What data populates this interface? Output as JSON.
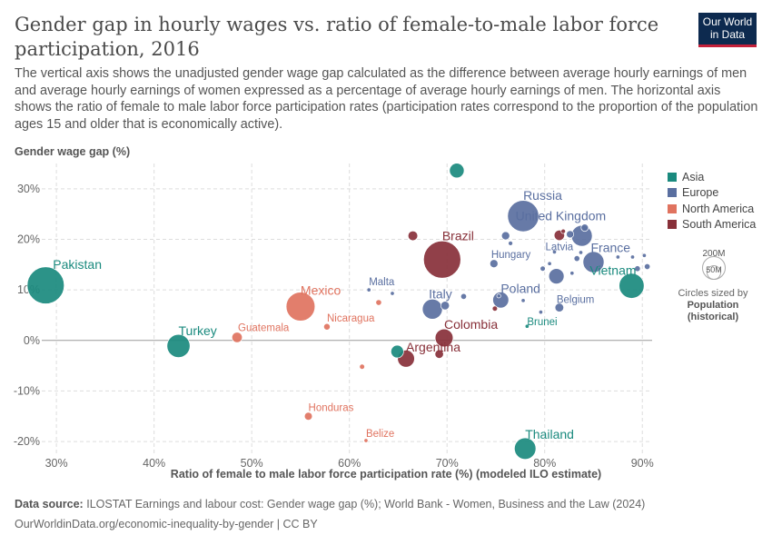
{
  "header": {
    "title": "Gender gap in hourly wages vs. ratio of female-to-male labor force participation, 2016",
    "subtitle": "The vertical axis shows the unadjusted gender wage gap calculated as the difference between average hourly earnings of men and average hourly earnings of women expressed as a percentage of average hourly earnings of men. The horizontal axis shows the ratio of female to male labor force participation rates (participation rates correspond to the proportion of the population ages 15 and older that is economically active).",
    "logo_line1": "Our World",
    "logo_line2": "in Data"
  },
  "footer": {
    "source_label": "Data source:",
    "source_text": "ILOSTAT Earnings and labour cost: Gender wage gap (%); World Bank - Women, Business and the Law (2024)",
    "url": "OurWorldinData.org/economic-inequality-by-gender | CC BY"
  },
  "colors": {
    "Asia": "#1a8a7e",
    "Europe": "#5a6fa0",
    "North America": "#e0735f",
    "South America": "#883039"
  },
  "chart_data": {
    "type": "scatter",
    "title": "Gender gap in hourly wages vs. ratio of female-to-male labor force participation, 2016",
    "xlabel": "Ratio of female to male labor force participation rate (%) (modeled ILO estimate)",
    "ylabel": "Gender wage gap (%)",
    "xlim": [
      28.5,
      91
    ],
    "ylim": [
      -22.5,
      35
    ],
    "x_ticks": [
      30,
      40,
      50,
      60,
      70,
      80,
      90
    ],
    "x_tick_labels": [
      "30%",
      "40%",
      "50%",
      "60%",
      "70%",
      "80%",
      "90%"
    ],
    "y_ticks": [
      -20,
      -10,
      0,
      10,
      20,
      30
    ],
    "y_tick_labels": [
      "-20%",
      "-10%",
      "0%",
      "10%",
      "20%",
      "30%"
    ],
    "grid": true,
    "legend_position": "right",
    "legend": [
      "Asia",
      "Europe",
      "North America",
      "South America"
    ],
    "size_legend": {
      "big": "200M",
      "small": "50M",
      "note": "Circles sized by",
      "var1": "Population",
      "var2": "(historical)"
    },
    "points": [
      {
        "label": "Pakistan",
        "x": 28.9,
        "y": 10.9,
        "pop": 204,
        "region": "Asia"
      },
      {
        "label": "Turkey",
        "x": 42.5,
        "y": -1.1,
        "pop": 79,
        "region": "Asia"
      },
      {
        "label": "Guatemala",
        "x": 48.5,
        "y": 0.6,
        "pop": 16,
        "region": "North America"
      },
      {
        "label": "Mexico",
        "x": 55.0,
        "y": 6.7,
        "pop": 124,
        "region": "North America"
      },
      {
        "label": "Nicaragua",
        "x": 57.7,
        "y": 2.7,
        "pop": 6.3,
        "region": "North America"
      },
      {
        "label": "Malta",
        "x": 62.0,
        "y": 10.0,
        "pop": 0.45,
        "region": "Europe"
      },
      {
        "label": "Honduras",
        "x": 55.8,
        "y": -15.0,
        "pop": 9.3,
        "region": "North America"
      },
      {
        "label": "Belize",
        "x": 61.7,
        "y": -19.8,
        "pop": 0.37,
        "region": "North America"
      },
      {
        "label": "Brazil",
        "x": 69.5,
        "y": 16.0,
        "pop": 206,
        "region": "South America"
      },
      {
        "label": "Italy",
        "x": 68.5,
        "y": 6.2,
        "pop": 60,
        "region": "Europe"
      },
      {
        "label": "Colombia",
        "x": 69.7,
        "y": 0.5,
        "pop": 48,
        "region": "South America"
      },
      {
        "label": "Argentina",
        "x": 65.8,
        "y": -3.6,
        "pop": 43,
        "region": "South America"
      },
      {
        "label": "Russia",
        "x": 77.8,
        "y": 24.6,
        "pop": 145,
        "region": "Europe"
      },
      {
        "label": "United Kingdom",
        "x": 83.8,
        "y": 20.7,
        "pop": 65,
        "region": "Europe"
      },
      {
        "label": "Hungary",
        "x": 74.8,
        "y": 15.2,
        "pop": 9.8,
        "region": "Europe"
      },
      {
        "label": "Latvia",
        "x": 81.0,
        "y": 17.5,
        "pop": 2.0,
        "region": "Europe"
      },
      {
        "label": "France",
        "x": 85.0,
        "y": 15.5,
        "pop": 66,
        "region": "Europe"
      },
      {
        "label": "Vietnam",
        "x": 88.9,
        "y": 10.8,
        "pop": 93,
        "region": "Asia"
      },
      {
        "label": "Poland",
        "x": 75.5,
        "y": 8.0,
        "pop": 38,
        "region": "Europe"
      },
      {
        "label": "Belgium",
        "x": 81.5,
        "y": 6.5,
        "pop": 11.3,
        "region": "Europe"
      },
      {
        "label": "Brunei",
        "x": 78.2,
        "y": 2.8,
        "pop": 0.42,
        "region": "Asia"
      },
      {
        "label": "Thailand",
        "x": 78.0,
        "y": -21.4,
        "pop": 69,
        "region": "Asia"
      },
      {
        "label": "",
        "x": 71.0,
        "y": 33.6,
        "pop": 32,
        "region": "Asia"
      },
      {
        "label": "",
        "x": 64.9,
        "y": -2.2,
        "pop": 24,
        "region": "Asia"
      },
      {
        "label": "",
        "x": 66.5,
        "y": 20.7,
        "pop": 14,
        "region": "South America"
      },
      {
        "label": "",
        "x": 69.2,
        "y": -2.7,
        "pop": 11,
        "region": "South America"
      },
      {
        "label": "",
        "x": 61.3,
        "y": -5.2,
        "pop": 4,
        "region": "North America"
      },
      {
        "label": "",
        "x": 63.0,
        "y": 7.5,
        "pop": 5,
        "region": "North America"
      },
      {
        "label": "",
        "x": 64.4,
        "y": 9.3,
        "pop": 0.6,
        "region": "Europe"
      },
      {
        "label": "",
        "x": 69.8,
        "y": 6.9,
        "pop": 11,
        "region": "Europe"
      },
      {
        "label": "",
        "x": 71.7,
        "y": 8.7,
        "pop": 5,
        "region": "Europe"
      },
      {
        "label": "",
        "x": 74.9,
        "y": 6.3,
        "pop": 4,
        "region": "South America"
      },
      {
        "label": "",
        "x": 75.3,
        "y": 8.8,
        "pop": 1,
        "region": "Europe"
      },
      {
        "label": "",
        "x": 76.0,
        "y": 20.7,
        "pop": 10,
        "region": "Europe"
      },
      {
        "label": "",
        "x": 76.5,
        "y": 19.2,
        "pop": 3,
        "region": "Europe"
      },
      {
        "label": "",
        "x": 77.8,
        "y": 7.9,
        "pop": 1,
        "region": "Europe"
      },
      {
        "label": "",
        "x": 79.6,
        "y": 5.6,
        "pop": 0.4,
        "region": "Europe"
      },
      {
        "label": "",
        "x": 79.8,
        "y": 14.2,
        "pop": 4,
        "region": "Europe"
      },
      {
        "label": "",
        "x": 80.5,
        "y": 15.2,
        "pop": 1,
        "region": "Europe"
      },
      {
        "label": "",
        "x": 81.2,
        "y": 12.7,
        "pop": 35,
        "region": "Europe"
      },
      {
        "label": "",
        "x": 81.5,
        "y": 20.8,
        "pop": 16,
        "region": "South America"
      },
      {
        "label": "",
        "x": 81.9,
        "y": 21.6,
        "pop": 3,
        "region": "South America"
      },
      {
        "label": "",
        "x": 82.6,
        "y": 21.0,
        "pop": 8,
        "region": "Europe"
      },
      {
        "label": "",
        "x": 82.8,
        "y": 13.3,
        "pop": 1,
        "region": "Europe"
      },
      {
        "label": "",
        "x": 83.3,
        "y": 16.2,
        "pop": 5,
        "region": "Europe"
      },
      {
        "label": "",
        "x": 83.7,
        "y": 17.4,
        "pop": 0.6,
        "region": "Europe"
      },
      {
        "label": "",
        "x": 84.1,
        "y": 22.3,
        "pop": 8,
        "region": "Europe"
      },
      {
        "label": "",
        "x": 87.5,
        "y": 16.5,
        "pop": 0.5,
        "region": "Europe"
      },
      {
        "label": "",
        "x": 89.0,
        "y": 16.5,
        "pop": 0.3,
        "region": "Europe"
      },
      {
        "label": "",
        "x": 89.5,
        "y": 14.2,
        "pop": 5,
        "region": "Europe"
      },
      {
        "label": "",
        "x": 90.2,
        "y": 16.8,
        "pop": 0.3,
        "region": "Europe"
      },
      {
        "label": "",
        "x": 90.5,
        "y": 14.6,
        "pop": 5,
        "region": "Europe"
      }
    ]
  }
}
